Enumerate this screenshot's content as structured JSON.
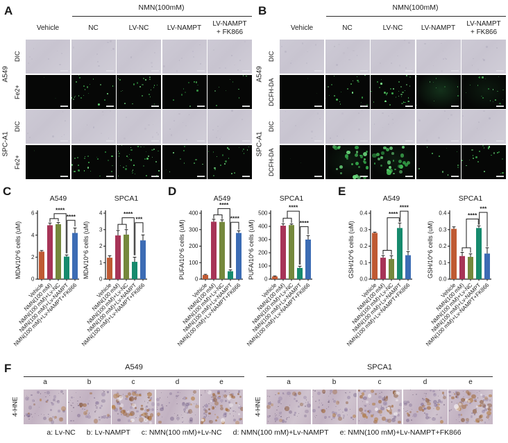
{
  "panels": {
    "A": {
      "label": "A",
      "treatment_header": "NMN(100mM)",
      "columns": [
        "Vehicle",
        "NC",
        "LV-NC",
        "LV-NAMPT",
        "LV-NAMPT\n+ FK866"
      ],
      "groups": [
        {
          "name": "A549",
          "rows": [
            {
              "label": "DIC",
              "kind": "dic"
            },
            {
              "label": "Fe2+",
              "kind": "fluor",
              "signal": [
                0,
                2,
                2,
                1,
                1
              ]
            }
          ]
        },
        {
          "name": "SPC-A1",
          "rows": [
            {
              "label": "DIC",
              "kind": "dic"
            },
            {
              "label": "Fe2+",
              "kind": "fluor",
              "signal": [
                0,
                2,
                3,
                1,
                2
              ]
            }
          ]
        }
      ]
    },
    "B": {
      "label": "B",
      "treatment_header": "NMN(100mM)",
      "columns": [
        "Vehicle",
        "NC",
        "LV-NC",
        "LV-NAMPT",
        "LV-NAMPT\n+ FK866"
      ],
      "groups": [
        {
          "name": "A549",
          "rows": [
            {
              "label": "DIC",
              "kind": "dic"
            },
            {
              "label": "DCFH-DA",
              "kind": "fluor",
              "signal": [
                0,
                2,
                3,
                1,
                2
              ],
              "wash": [
                0,
                0,
                0,
                2,
                1
              ]
            }
          ]
        },
        {
          "name": "SPC-A1",
          "rows": [
            {
              "label": "DIC",
              "kind": "dic"
            },
            {
              "label": "DCFH-DA",
              "kind": "fluor",
              "signal": [
                0,
                4,
                4,
                1,
                2
              ],
              "wash": [
                0,
                1,
                1,
                0,
                0
              ]
            }
          ]
        }
      ]
    },
    "C": {
      "label": "C"
    },
    "D": {
      "label": "D"
    },
    "E": {
      "label": "E"
    },
    "F": {
      "label": "F",
      "row_label": "4-HNE",
      "column_letters": [
        "a",
        "b",
        "c",
        "d",
        "e"
      ],
      "groups": [
        {
          "name": "A549",
          "stain_intensity": [
            1,
            1,
            5,
            1,
            4
          ]
        },
        {
          "name": "SPCA1",
          "stain_intensity": [
            1,
            1,
            4,
            2,
            5
          ]
        }
      ],
      "caption": [
        "a: Lv-NC",
        "b: Lv-NAMPT",
        "c: NMN(100 mM)+Lv-NC",
        "d: NMN(100 mM)+Lv-NAMPT",
        "e: NMN(100 mM)+Lv-NAMPT+FK866"
      ]
    }
  },
  "chart_data": [
    {
      "type": "bar",
      "panel": "C",
      "title": "A549",
      "ylabel": "MDA/10^6 cells (uM)",
      "ylim": [
        0,
        6
      ],
      "yticks": [
        "0",
        "2",
        "4",
        "6"
      ],
      "categories": [
        "Vehicle",
        "NMN(100 mM)",
        "NMN(100 mM)+Lv-NC",
        "NMN(100 mM)+Lv-NAMPT",
        "NMN(100 mM)+Lv-NAMPT+FK866"
      ],
      "values": [
        2.5,
        4.9,
        5.0,
        2.05,
        4.2
      ],
      "errors": [
        0.1,
        0.2,
        0.15,
        0.15,
        0.45
      ],
      "significance": [
        {
          "x1": 1,
          "x2": 2,
          "top": 5.5,
          "leg1": 5.2,
          "leg2": 5.25,
          "label": ""
        },
        {
          "x1": 1.5,
          "x2": 2.94,
          "top": 5.95,
          "leg1": 5.5,
          "leg2": 2.35,
          "label": "****"
        },
        {
          "x1": 3.06,
          "x2": 4,
          "top": 5.35,
          "leg1": 2.35,
          "leg2": 4.8,
          "label": "****"
        }
      ]
    },
    {
      "type": "bar",
      "panel": "C",
      "title": "SPCA1",
      "ylabel": "MDA/10^6 cells (uM)",
      "ylim": [
        0,
        4
      ],
      "yticks": [
        "0",
        "1",
        "2",
        "3",
        "4"
      ],
      "categories": [
        "Vehicle",
        "NMN(100 mM)",
        "NMN(100 mM)+Lv-NC",
        "NMN(100 mM)+Lv-NAMPT",
        "NMN(100 mM)+Lv-NAMPT+FK866"
      ],
      "values": [
        1.3,
        2.65,
        2.7,
        1.05,
        2.35
      ],
      "errors": [
        0.12,
        0.3,
        0.3,
        0.28,
        0.33
      ],
      "significance": [
        {
          "x1": 1,
          "x2": 2,
          "top": 3.32,
          "leg1": 3.0,
          "leg2": 3.05,
          "label": ""
        },
        {
          "x1": 1.5,
          "x2": 2.94,
          "top": 3.72,
          "leg1": 3.32,
          "leg2": 1.45,
          "label": "****"
        },
        {
          "x1": 3.06,
          "x2": 4,
          "top": 3.42,
          "leg1": 1.45,
          "leg2": 2.82,
          "label": "***"
        }
      ]
    },
    {
      "type": "bar",
      "panel": "D",
      "title": "A549",
      "ylabel": "PUFA/10^6 cells (uM)",
      "ylim": [
        0,
        400
      ],
      "yticks": [
        "0",
        "100",
        "200",
        "300",
        "400"
      ],
      "categories": [
        "Vehicle",
        "NMN(100 mM)",
        "NMN(100 mM)+Lv-NC",
        "NMN(100 mM)+Lv-NAMPT",
        "NMN(100 mM)+Lv-NAMPT+FK866"
      ],
      "values": [
        25,
        348,
        347,
        48,
        280
      ],
      "errors": [
        4,
        15,
        12,
        8,
        13
      ],
      "significance": [
        {
          "x1": 1,
          "x2": 2,
          "top": 390,
          "leg1": 368,
          "leg2": 364,
          "label": ""
        },
        {
          "x1": 1.5,
          "x2": 2.94,
          "top": 428,
          "leg1": 390,
          "leg2": 68,
          "label": "****"
        },
        {
          "x1": 3.06,
          "x2": 4,
          "top": 345,
          "leg1": 68,
          "leg2": 300,
          "label": "****"
        }
      ]
    },
    {
      "type": "bar",
      "panel": "D",
      "title": "SPCA1",
      "ylabel": "PUFA/10^6 cells (uM)",
      "ylim": [
        0,
        500
      ],
      "yticks": [
        "0",
        "100",
        "200",
        "300",
        "400",
        "500"
      ],
      "categories": [
        "Vehicle",
        "NMN(100 mM)",
        "NMN(100 mM)+Lv-NC",
        "NMN(100 mM)+Lv-NAMPT",
        "NMN(100 mM)+Lv-NAMPT+FK866"
      ],
      "values": [
        20,
        405,
        410,
        85,
        300
      ],
      "errors": [
        4,
        15,
        8,
        13,
        30
      ],
      "significance": [
        {
          "x1": 1,
          "x2": 2,
          "top": 462,
          "leg1": 428,
          "leg2": 425,
          "label": ""
        },
        {
          "x1": 1.5,
          "x2": 2.94,
          "top": 515,
          "leg1": 462,
          "leg2": 110,
          "label": "****"
        },
        {
          "x1": 3.06,
          "x2": 4,
          "top": 398,
          "leg1": 110,
          "leg2": 340,
          "label": "****"
        }
      ]
    },
    {
      "type": "bar",
      "panel": "E",
      "title": "A549",
      "ylabel": "GSH/10^6 cells (uM)",
      "ylim": [
        0,
        0.4
      ],
      "yticks": [
        "0.0",
        "0.1",
        "0.2",
        "0.3",
        "0.4"
      ],
      "categories": [
        "Vehicle",
        "NMN(100 mM)",
        "NMN(100 mM)+Lv-NC",
        "NMN(100 mM)+Lv-NAMPT",
        "NMN(100 mM)+Lv-NAMPT+FK866"
      ],
      "values": [
        0.28,
        0.13,
        0.122,
        0.31,
        0.145
      ],
      "errors": [
        0.005,
        0.013,
        0.02,
        0.03,
        0.022
      ],
      "significance": [
        {
          "x1": 1,
          "x2": 2,
          "top": 0.175,
          "leg1": 0.15,
          "leg2": 0.148,
          "label": ""
        },
        {
          "x1": 1.5,
          "x2": 2.94,
          "top": 0.372,
          "leg1": 0.175,
          "leg2": 0.348,
          "label": "****"
        },
        {
          "x1": 3.06,
          "x2": 4,
          "top": 0.412,
          "leg1": 0.348,
          "leg2": 0.174,
          "label": "****"
        }
      ]
    },
    {
      "type": "bar",
      "panel": "E",
      "title": "SPCA1",
      "ylabel": "GSH/10^6 cells (uM)",
      "ylim": [
        0,
        0.4
      ],
      "yticks": [
        "0.0",
        "0.1",
        "0.2",
        "0.3",
        "0.4"
      ],
      "categories": [
        "Vehicle",
        "NMN(100 mM)",
        "NMN(100 mM)+Lv-NC",
        "NMN(100 mM)+Lv-NAMPT",
        "NMN(100 mM)+Lv-NAMPT+FK866"
      ],
      "values": [
        0.305,
        0.14,
        0.135,
        0.31,
        0.155
      ],
      "errors": [
        0.012,
        0.022,
        0.018,
        0.013,
        0.035
      ],
      "significance": [
        {
          "x1": 1,
          "x2": 2,
          "top": 0.19,
          "leg1": 0.168,
          "leg2": 0.16,
          "label": ""
        },
        {
          "x1": 1.5,
          "x2": 2.94,
          "top": 0.365,
          "leg1": 0.19,
          "leg2": 0.33,
          "label": "****"
        },
        {
          "x1": 3.06,
          "x2": 4,
          "top": 0.405,
          "leg1": 0.33,
          "leg2": 0.197,
          "label": "***"
        }
      ]
    }
  ],
  "colors": {
    "bars": [
      "#bf5a33",
      "#a73457",
      "#75883c",
      "#168a6d",
      "#3c6cb4"
    ],
    "axis": "#1a1a1a",
    "fluor_greens": [
      "#3fae4f",
      "#57cf66",
      "#2f9440",
      "#7de98c"
    ],
    "blob_greens": [
      "#4ed963",
      "#77ef8a",
      "#36b14d"
    ]
  }
}
